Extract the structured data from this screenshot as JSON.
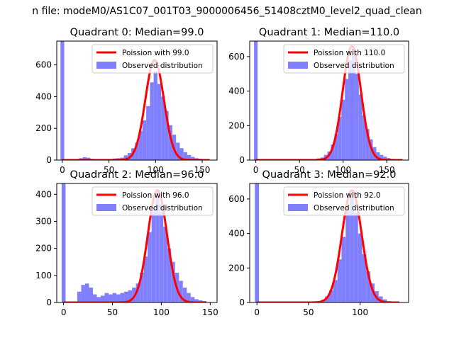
{
  "figure": {
    "suptitle": "n file: modeM0/AS1C07_001T03_9000006456_51408cztM0_level2_quad_clean"
  },
  "colors": {
    "histogram": "#8080ff",
    "poisson_line": "#ff0000",
    "axes": "#000000"
  },
  "chart_data": [
    {
      "type": "bar",
      "title": "Quadrant 0: Median=99.0",
      "xlim": [
        -6,
        166
      ],
      "ylim": [
        0,
        750
      ],
      "xticks": [
        0,
        50,
        100,
        150
      ],
      "yticks": [
        0,
        200,
        400,
        600
      ],
      "legend": {
        "placement": "top-right",
        "line_label": "Poission with 99.0",
        "bar_label": "Observed distribution"
      },
      "bin_width": 4,
      "histogram": [
        {
          "x": 0,
          "y": 750
        },
        {
          "x": 20,
          "y": 12
        },
        {
          "x": 24,
          "y": 18
        },
        {
          "x": 28,
          "y": 15
        },
        {
          "x": 32,
          "y": 8
        },
        {
          "x": 36,
          "y": 4
        },
        {
          "x": 40,
          "y": 5
        },
        {
          "x": 44,
          "y": 5
        },
        {
          "x": 48,
          "y": 3
        },
        {
          "x": 52,
          "y": 5
        },
        {
          "x": 56,
          "y": 10
        },
        {
          "x": 60,
          "y": 12
        },
        {
          "x": 64,
          "y": 15
        },
        {
          "x": 68,
          "y": 30
        },
        {
          "x": 72,
          "y": 45
        },
        {
          "x": 76,
          "y": 75
        },
        {
          "x": 80,
          "y": 110
        },
        {
          "x": 84,
          "y": 185
        },
        {
          "x": 88,
          "y": 250
        },
        {
          "x": 92,
          "y": 340
        },
        {
          "x": 96,
          "y": 490
        },
        {
          "x": 100,
          "y": 560
        },
        {
          "x": 104,
          "y": 480
        },
        {
          "x": 108,
          "y": 400
        },
        {
          "x": 112,
          "y": 310
        },
        {
          "x": 116,
          "y": 220
        },
        {
          "x": 120,
          "y": 160
        },
        {
          "x": 124,
          "y": 110
        },
        {
          "x": 128,
          "y": 75
        },
        {
          "x": 132,
          "y": 50
        },
        {
          "x": 136,
          "y": 32
        },
        {
          "x": 140,
          "y": 20
        },
        {
          "x": 144,
          "y": 12
        },
        {
          "x": 148,
          "y": 8
        },
        {
          "x": 152,
          "y": 5
        },
        {
          "x": 156,
          "y": 3
        }
      ],
      "poisson": {
        "lambda": 99.0,
        "peak": 630,
        "x_range": [
          0,
          158
        ]
      }
    },
    {
      "type": "bar",
      "title": "Quadrant 1: Median=110.0",
      "xlim": [
        -7,
        175
      ],
      "ylim": [
        0,
        690
      ],
      "xticks": [
        0,
        50,
        100,
        150
      ],
      "yticks": [
        0,
        200,
        400,
        600
      ],
      "legend": {
        "placement": "top-right",
        "line_label": "Poission with 110.0",
        "bar_label": "Observed distribution"
      },
      "bin_width": 4,
      "histogram": [
        {
          "x": 0,
          "y": 690
        },
        {
          "x": 20,
          "y": 3
        },
        {
          "x": 40,
          "y": 2
        },
        {
          "x": 60,
          "y": 3
        },
        {
          "x": 64,
          "y": 4
        },
        {
          "x": 68,
          "y": 6
        },
        {
          "x": 72,
          "y": 10
        },
        {
          "x": 76,
          "y": 15
        },
        {
          "x": 80,
          "y": 30
        },
        {
          "x": 84,
          "y": 50
        },
        {
          "x": 88,
          "y": 90
        },
        {
          "x": 92,
          "y": 150
        },
        {
          "x": 96,
          "y": 250
        },
        {
          "x": 100,
          "y": 350
        },
        {
          "x": 104,
          "y": 470
        },
        {
          "x": 108,
          "y": 580
        },
        {
          "x": 112,
          "y": 610
        },
        {
          "x": 116,
          "y": 500
        },
        {
          "x": 120,
          "y": 380
        },
        {
          "x": 124,
          "y": 260
        },
        {
          "x": 128,
          "y": 180
        },
        {
          "x": 132,
          "y": 120
        },
        {
          "x": 136,
          "y": 75
        },
        {
          "x": 140,
          "y": 45
        },
        {
          "x": 144,
          "y": 30
        },
        {
          "x": 148,
          "y": 20
        },
        {
          "x": 152,
          "y": 12
        },
        {
          "x": 156,
          "y": 7
        },
        {
          "x": 160,
          "y": 4
        }
      ],
      "poisson": {
        "lambda": 110.0,
        "peak": 660,
        "x_range": [
          0,
          168
        ]
      }
    },
    {
      "type": "bar",
      "title": "Quadrant 2: Median=96.0",
      "xlim": [
        -7,
        157
      ],
      "ylim": [
        0,
        440
      ],
      "xticks": [
        0,
        50,
        100,
        150
      ],
      "yticks": [
        0,
        100,
        200,
        300,
        400
      ],
      "legend": {
        "placement": "top-right",
        "line_label": "Poission with 96.0",
        "bar_label": "Observed distribution"
      },
      "bin_width": 4,
      "histogram": [
        {
          "x": 0,
          "y": 440
        },
        {
          "x": 16,
          "y": 40
        },
        {
          "x": 20,
          "y": 65
        },
        {
          "x": 24,
          "y": 70
        },
        {
          "x": 28,
          "y": 55
        },
        {
          "x": 32,
          "y": 30
        },
        {
          "x": 36,
          "y": 20
        },
        {
          "x": 40,
          "y": 25
        },
        {
          "x": 44,
          "y": 35
        },
        {
          "x": 48,
          "y": 30
        },
        {
          "x": 52,
          "y": 35
        },
        {
          "x": 56,
          "y": 30
        },
        {
          "x": 60,
          "y": 35
        },
        {
          "x": 64,
          "y": 40
        },
        {
          "x": 68,
          "y": 45
        },
        {
          "x": 72,
          "y": 55
        },
        {
          "x": 76,
          "y": 70
        },
        {
          "x": 80,
          "y": 110
        },
        {
          "x": 84,
          "y": 170
        },
        {
          "x": 88,
          "y": 260
        },
        {
          "x": 92,
          "y": 350
        },
        {
          "x": 96,
          "y": 410
        },
        {
          "x": 100,
          "y": 360
        },
        {
          "x": 104,
          "y": 280
        },
        {
          "x": 108,
          "y": 200
        },
        {
          "x": 112,
          "y": 150
        },
        {
          "x": 116,
          "y": 110
        },
        {
          "x": 120,
          "y": 80
        },
        {
          "x": 124,
          "y": 55
        },
        {
          "x": 128,
          "y": 35
        },
        {
          "x": 132,
          "y": 20
        },
        {
          "x": 136,
          "y": 12
        },
        {
          "x": 140,
          "y": 8
        },
        {
          "x": 144,
          "y": 5
        }
      ],
      "poisson": {
        "lambda": 96.0,
        "peak": 415,
        "x_range": [
          0,
          146
        ]
      }
    },
    {
      "type": "bar",
      "title": "Quadrant 3: Median=92.0",
      "xlim": [
        -7,
        147
      ],
      "ylim": [
        0,
        690
      ],
      "xticks": [
        0,
        50,
        100
      ],
      "yticks": [
        0,
        200,
        400,
        600
      ],
      "legend": {
        "placement": "top-right",
        "line_label": "Poission with 92.0",
        "bar_label": "Observed distribution"
      },
      "bin_width": 4,
      "histogram": [
        {
          "x": 0,
          "y": 690
        },
        {
          "x": 20,
          "y": 3
        },
        {
          "x": 40,
          "y": 2
        },
        {
          "x": 52,
          "y": 3
        },
        {
          "x": 56,
          "y": 5
        },
        {
          "x": 60,
          "y": 8
        },
        {
          "x": 64,
          "y": 15
        },
        {
          "x": 68,
          "y": 35
        },
        {
          "x": 72,
          "y": 70
        },
        {
          "x": 76,
          "y": 130
        },
        {
          "x": 80,
          "y": 250
        },
        {
          "x": 84,
          "y": 380
        },
        {
          "x": 88,
          "y": 530
        },
        {
          "x": 92,
          "y": 610
        },
        {
          "x": 96,
          "y": 520
        },
        {
          "x": 100,
          "y": 400
        },
        {
          "x": 104,
          "y": 280
        },
        {
          "x": 108,
          "y": 180
        },
        {
          "x": 112,
          "y": 110
        },
        {
          "x": 116,
          "y": 65
        },
        {
          "x": 120,
          "y": 35
        },
        {
          "x": 124,
          "y": 18
        },
        {
          "x": 128,
          "y": 8
        },
        {
          "x": 132,
          "y": 4
        }
      ],
      "poisson": {
        "lambda": 92.0,
        "peak": 650,
        "x_range": [
          0,
          138
        ]
      }
    }
  ]
}
